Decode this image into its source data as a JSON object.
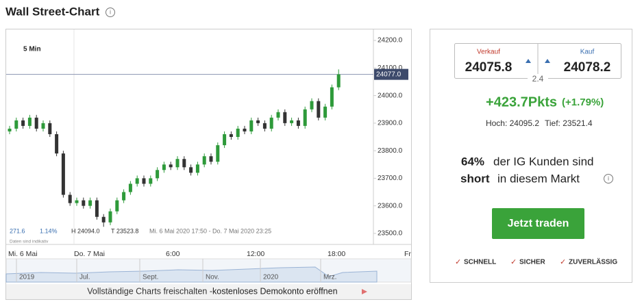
{
  "header": {
    "title": "Wall Street-Chart"
  },
  "chart_data": {
    "type": "candlestick",
    "interval": "5 Min",
    "open": [
      23870,
      23880,
      23910,
      23890,
      23920,
      23880,
      23900,
      23860,
      23790,
      23640,
      23610,
      23620,
      23600,
      23620,
      23560,
      23540,
      23580,
      23620,
      23650,
      23680,
      23700,
      23680,
      23700,
      23730,
      23750,
      23740,
      23770,
      23740,
      23720,
      23750,
      23780,
      23760,
      23820,
      23860,
      23850,
      23880,
      23870,
      23910,
      23900,
      23880,
      23920,
      23940,
      23900,
      23910,
      23890,
      23950,
      23980,
      23920,
      23960,
      24030
    ],
    "high": [
      23890,
      23920,
      23920,
      23930,
      23930,
      23910,
      23910,
      23870,
      23800,
      23650,
      23630,
      23630,
      23630,
      23630,
      23570,
      23590,
      23630,
      23660,
      23690,
      23710,
      23710,
      23710,
      23740,
      23760,
      23760,
      23780,
      23780,
      23750,
      23760,
      23790,
      23790,
      23830,
      23870,
      23870,
      23890,
      23890,
      23920,
      23920,
      23910,
      23930,
      23950,
      23950,
      23920,
      23920,
      23960,
      23990,
      23990,
      23970,
      24040,
      24095
    ],
    "low": [
      23860,
      23870,
      23880,
      23880,
      23870,
      23870,
      23850,
      23780,
      23630,
      23600,
      23600,
      23590,
      23590,
      23550,
      23524,
      23530,
      23570,
      23610,
      23640,
      23670,
      23670,
      23670,
      23690,
      23720,
      23730,
      23730,
      23730,
      23710,
      23710,
      23740,
      23750,
      23750,
      23810,
      23840,
      23840,
      23860,
      23860,
      23890,
      23870,
      23870,
      23910,
      23890,
      23890,
      23880,
      23880,
      23940,
      23910,
      23910,
      23950,
      24020
    ],
    "close": [
      23880,
      23910,
      23890,
      23920,
      23880,
      23900,
      23860,
      23790,
      23640,
      23610,
      23620,
      23600,
      23620,
      23560,
      23540,
      23580,
      23620,
      23650,
      23680,
      23700,
      23680,
      23700,
      23730,
      23750,
      23740,
      23770,
      23740,
      23720,
      23750,
      23780,
      23760,
      23820,
      23860,
      23850,
      23880,
      23870,
      23910,
      23900,
      23880,
      23920,
      23940,
      23900,
      23910,
      23890,
      23950,
      23980,
      23920,
      23960,
      24030,
      24077
    ],
    "up_color": "#2e9a3a",
    "down_color": "#333333",
    "ylim": [
      23460,
      24240
    ],
    "yticks": [
      {
        "value": 23500,
        "label": "23500.0"
      },
      {
        "value": 23600,
        "label": "23600.0"
      },
      {
        "value": 23700,
        "label": "23700.0"
      },
      {
        "value": 23800,
        "label": "23800.0"
      },
      {
        "value": 23900,
        "label": "23900.0"
      },
      {
        "value": 24000,
        "label": "24000.0"
      },
      {
        "value": 24100,
        "label": "24100.0"
      },
      {
        "value": 24200,
        "label": "24200.0"
      }
    ],
    "current": {
      "value": 24077,
      "label": "24077.0"
    },
    "xtick_labels": [
      "Mi. 6 Mai",
      "Do. 7 Mai",
      "6:00",
      "12:00",
      "18:00",
      "Fr"
    ],
    "info": [
      "271.6",
      "1.14%",
      "H 24094.0",
      "T 23523.8",
      "Mi. 6 Mai 2020 17:50 - Do. 7 Mai 2020 23:25"
    ],
    "note": "Daten sind indikativ",
    "navigator_labels": [
      "2019",
      "Jul.",
      "Sept.",
      "Nov.",
      "2020",
      "Mrz."
    ]
  },
  "banner": {
    "text": "Vollständige Charts freischalten - ",
    "link": "kostenloses Demokonto eröffnen"
  },
  "panel": {
    "sell_label": "Verkauf",
    "sell": "24075.8",
    "buy_label": "Kauf",
    "buy": "24078.2",
    "spread": "2.4",
    "change": "+423.7Pkts",
    "change_pct": "(+1.79%)",
    "high": "Hoch: 24095.2",
    "low": "Tief: 23521.4",
    "sentiment_pct": "64%",
    "sentiment_1": "der IG Kunden sind",
    "sentiment_dir": "short",
    "sentiment_2": "in diesem Markt",
    "button": "Jetzt traden",
    "features": [
      "SCHNELL",
      "SICHER",
      "ZUVERLÄSSIG"
    ]
  }
}
